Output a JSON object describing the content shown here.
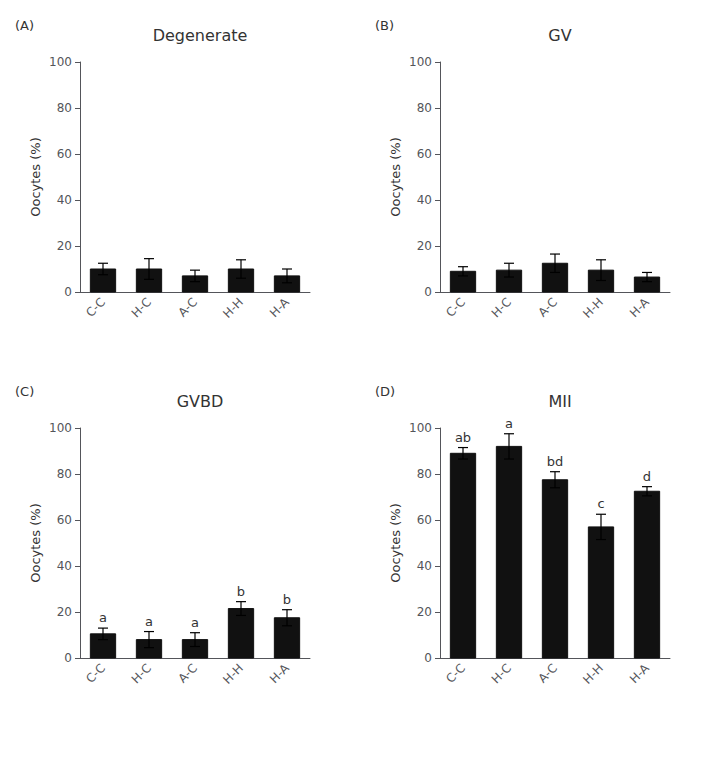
{
  "chart_data": [
    {
      "type": "bar",
      "label": "(A)",
      "title": "Degenerate",
      "ylabel": "Oocytes (%)",
      "categories": [
        "C-C",
        "H-C",
        "A-C",
        "H-H",
        "H-A"
      ],
      "values": [
        10.0,
        10.0,
        7.0,
        10.0,
        7.0
      ],
      "errors": [
        2.5,
        4.5,
        2.5,
        4.0,
        3.0
      ],
      "color": "#111111",
      "ylim": [
        0,
        100
      ],
      "yticks": [
        0,
        20,
        40,
        60,
        80,
        100
      ],
      "grid": false
    },
    {
      "type": "bar",
      "label": "(B)",
      "title": "GV",
      "ylabel": "Oocytes (%)",
      "categories": [
        "C-C",
        "H-C",
        "A-C",
        "H-H",
        "H-A"
      ],
      "values": [
        9.0,
        9.5,
        12.5,
        9.5,
        6.5
      ],
      "errors": [
        2.0,
        3.0,
        4.0,
        4.5,
        2.0
      ],
      "color": "#111111",
      "ylim": [
        0,
        100
      ],
      "yticks": [
        0,
        20,
        40,
        60,
        80,
        100
      ],
      "grid": false
    },
    {
      "type": "bar",
      "label": "(C)",
      "title": "GVBD",
      "ylabel": "Oocytes (%)",
      "categories": [
        "C-C",
        "H-C",
        "A-C",
        "H-H",
        "H-A"
      ],
      "values": [
        10.5,
        8.0,
        8.0,
        21.5,
        17.5
      ],
      "errors": [
        2.5,
        3.5,
        3.0,
        3.0,
        3.5
      ],
      "sig_labels": [
        "a",
        "a",
        "a",
        "b",
        "b"
      ],
      "color": "#111111",
      "ylim": [
        0,
        100
      ],
      "yticks": [
        0,
        20,
        40,
        60,
        80,
        100
      ],
      "grid": false
    },
    {
      "type": "bar",
      "label": "(D)",
      "title": "MII",
      "ylabel": "Oocytes (%)",
      "categories": [
        "C-C",
        "H-C",
        "A-C",
        "H-H",
        "H-A"
      ],
      "values": [
        89.0,
        92.0,
        77.5,
        57.0,
        72.5
      ],
      "errors": [
        2.5,
        5.5,
        3.5,
        5.5,
        2.0
      ],
      "sig_labels": [
        "ab",
        "a",
        "bd",
        "c",
        "d"
      ],
      "color": "#111111",
      "ylim": [
        0,
        100
      ],
      "yticks": [
        0,
        20,
        40,
        60,
        80,
        100
      ],
      "grid": false
    }
  ]
}
